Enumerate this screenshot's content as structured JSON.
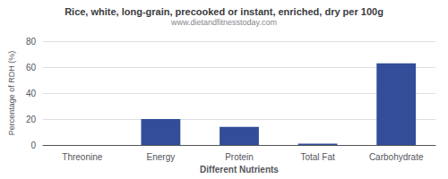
{
  "chart_data": {
    "type": "bar",
    "title": "Rice, white, long-grain, precooked or instant, enriched, dry per 100g",
    "subtitle": "www.dietandfitnesstoday.com",
    "categories": [
      "Threonine",
      "Energy",
      "Protein",
      "Total Fat",
      "Carbohydrate"
    ],
    "values": [
      0,
      20,
      14,
      1,
      63
    ],
    "color": "#334d99",
    "xlabel": "Different Nutrients",
    "ylabel": "Percentage of RDH (%)",
    "ylim": [
      0,
      80
    ],
    "yticks": [
      0,
      20,
      40,
      60,
      80
    ],
    "grid": true
  }
}
